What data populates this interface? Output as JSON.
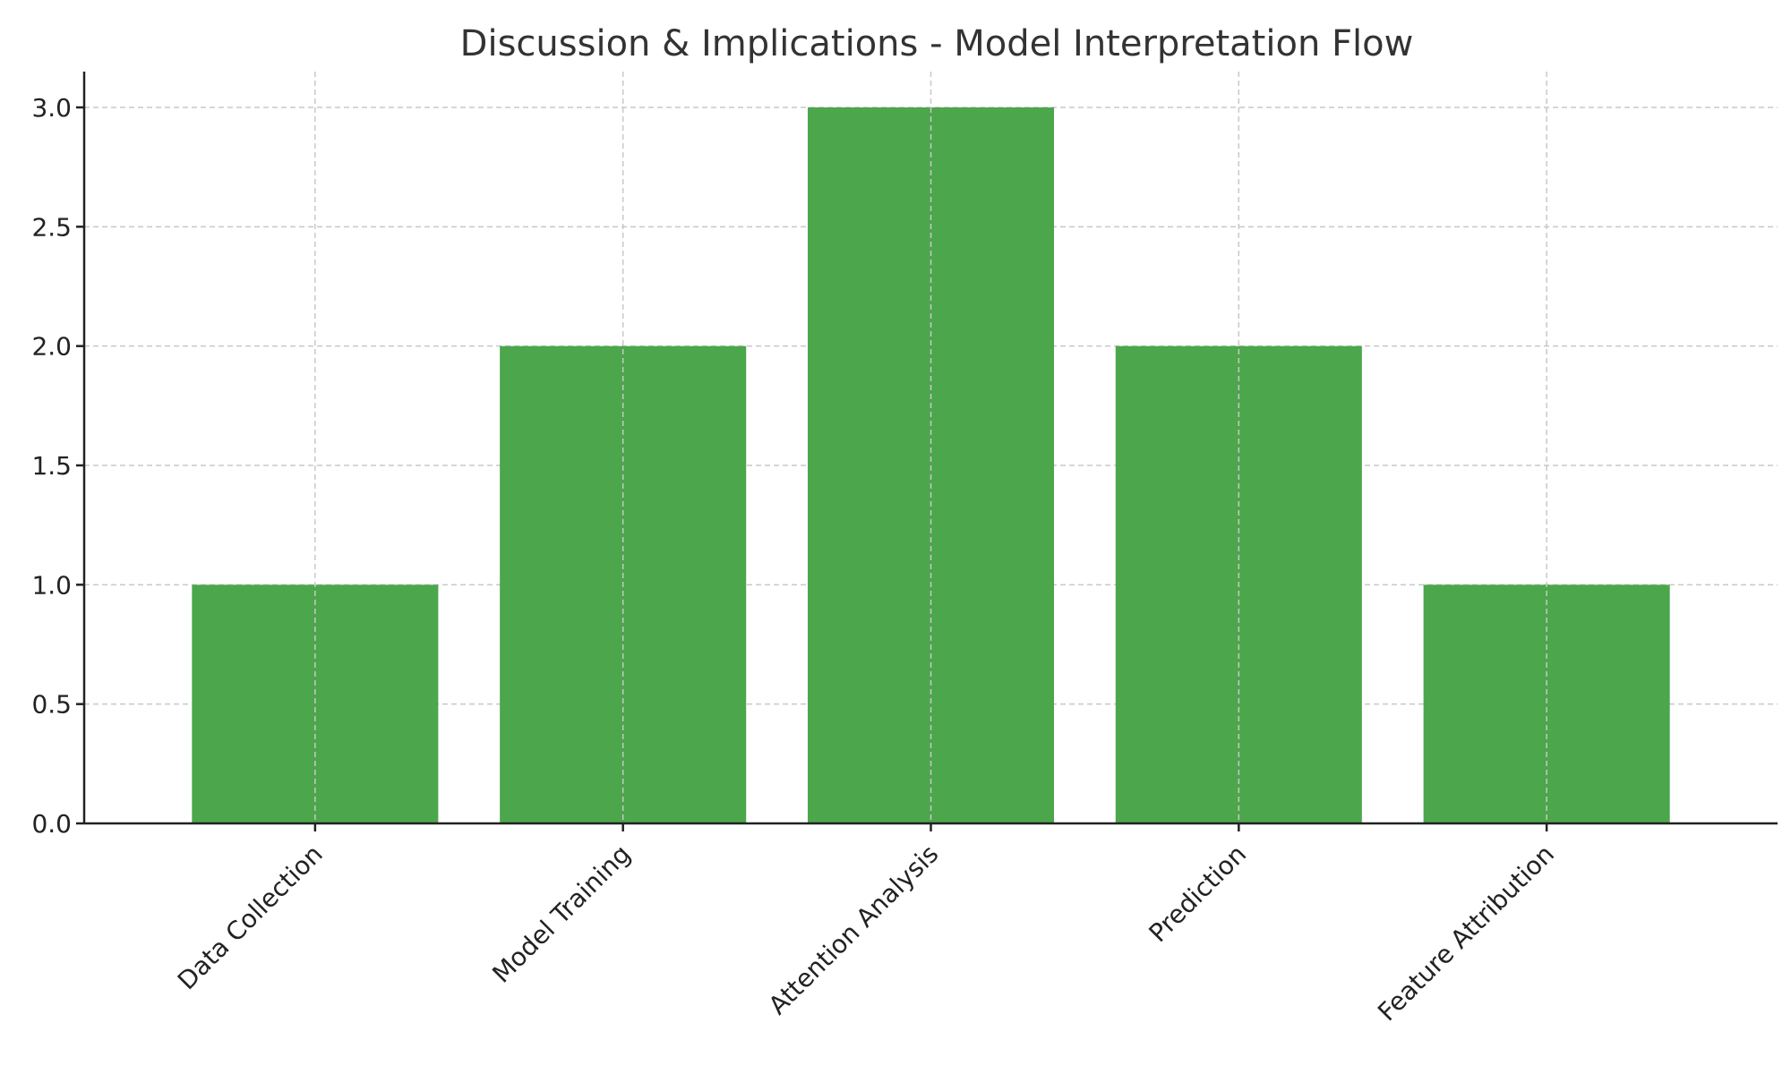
{
  "chart_data": {
    "type": "bar",
    "title": "Discussion & Implications - Model Interpretation Flow",
    "xlabel": "",
    "ylabel": "",
    "categories": [
      "Data Collection",
      "Model Training",
      "Attention Analysis",
      "Prediction",
      "Feature Attribution"
    ],
    "values": [
      1,
      2,
      3,
      2,
      1
    ],
    "ylim": [
      0,
      3.15
    ],
    "yticks": [
      "0.0",
      "0.5",
      "1.0",
      "1.5",
      "2.0",
      "2.5",
      "3.0"
    ],
    "bar_color": "#4ca64c",
    "grid": true,
    "legend": "none"
  }
}
